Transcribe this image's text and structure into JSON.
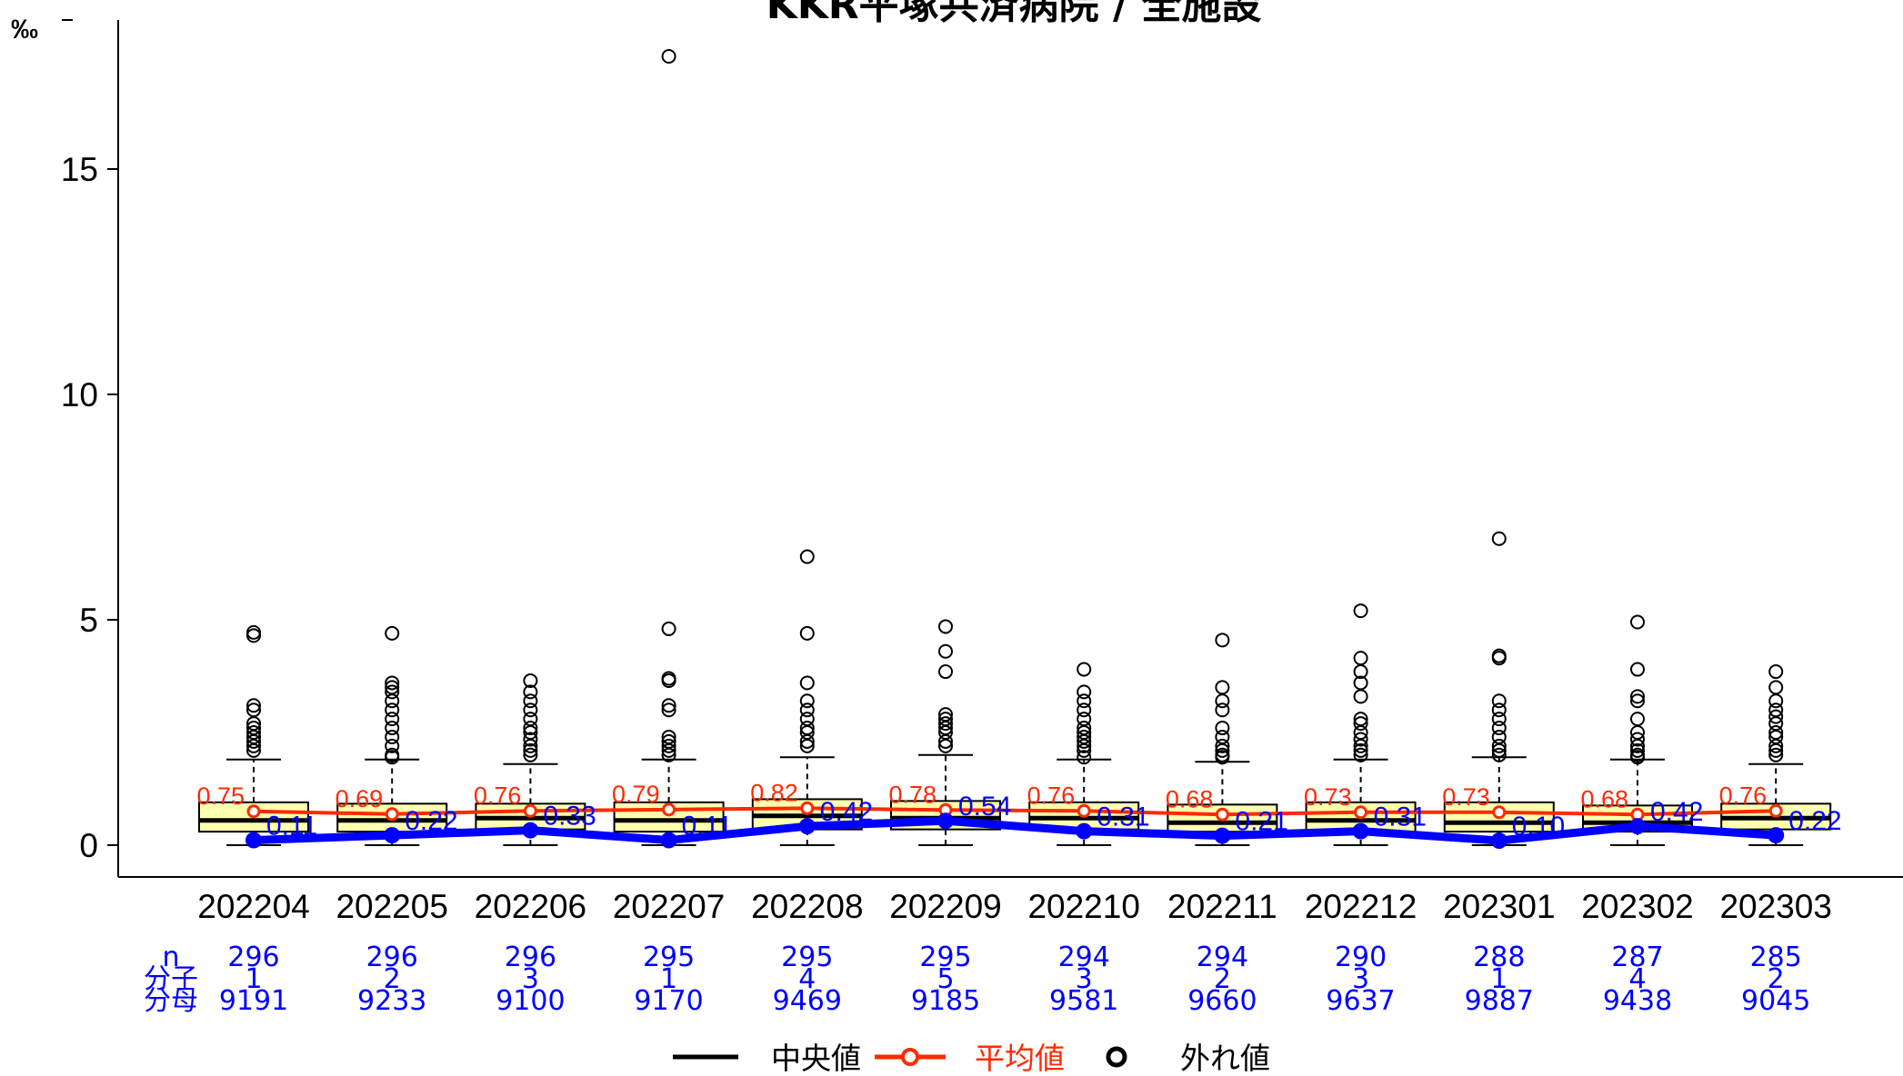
{
  "chart_data": {
    "type": "box",
    "title": "KKR平塚共済病院 / 全施設",
    "unit": "‰",
    "ylim": [
      0,
      18.3
    ],
    "yticks": [
      0,
      5,
      10,
      15
    ],
    "categories": [
      "202204",
      "202205",
      "202206",
      "202207",
      "202208",
      "202209",
      "202210",
      "202211",
      "202212",
      "202301",
      "202302",
      "202303"
    ],
    "boxes": [
      {
        "q1": 0.3,
        "median": 0.55,
        "q3": 0.95,
        "whisker_low": 0,
        "whisker_high": 1.9,
        "outliers": [
          2.1,
          2.2,
          2.3,
          2.4,
          2.5,
          2.6,
          2.7,
          3.0,
          3.1,
          4.65,
          4.72
        ]
      },
      {
        "q1": 0.3,
        "median": 0.55,
        "q3": 0.92,
        "whisker_low": 0,
        "whisker_high": 1.9,
        "outliers": [
          1.95,
          2.0,
          2.2,
          2.4,
          2.6,
          2.8,
          3.0,
          3.2,
          3.4,
          3.5,
          3.6,
          4.7
        ]
      },
      {
        "q1": 0.35,
        "median": 0.6,
        "q3": 0.92,
        "whisker_low": 0,
        "whisker_high": 1.8,
        "outliers": [
          2.0,
          2.1,
          2.2,
          2.35,
          2.5,
          2.6,
          2.8,
          3.0,
          3.2,
          3.4,
          3.65
        ]
      },
      {
        "q1": 0.3,
        "median": 0.55,
        "q3": 0.95,
        "whisker_low": 0,
        "whisker_high": 1.9,
        "outliers": [
          2.0,
          2.1,
          2.2,
          2.3,
          2.4,
          3.0,
          3.1,
          3.65,
          3.7,
          4.8,
          17.5
        ]
      },
      {
        "q1": 0.35,
        "median": 0.65,
        "q3": 1.02,
        "whisker_low": 0,
        "whisker_high": 1.95,
        "outliers": [
          2.2,
          2.3,
          2.5,
          2.6,
          2.8,
          3.0,
          3.2,
          3.6,
          4.7,
          6.4
        ]
      },
      {
        "q1": 0.35,
        "median": 0.6,
        "q3": 0.98,
        "whisker_low": 0,
        "whisker_high": 2.0,
        "outliers": [
          2.2,
          2.3,
          2.5,
          2.6,
          2.7,
          2.8,
          2.9,
          3.85,
          4.3,
          4.85
        ]
      },
      {
        "q1": 0.35,
        "median": 0.6,
        "q3": 0.95,
        "whisker_low": 0,
        "whisker_high": 1.9,
        "outliers": [
          1.95,
          2.1,
          2.2,
          2.3,
          2.4,
          2.5,
          2.6,
          2.8,
          3.0,
          3.2,
          3.4,
          3.9
        ]
      },
      {
        "q1": 0.3,
        "median": 0.5,
        "q3": 0.9,
        "whisker_low": 0,
        "whisker_high": 1.85,
        "outliers": [
          1.95,
          2.0,
          2.1,
          2.2,
          2.4,
          2.6,
          3.0,
          3.2,
          3.5,
          4.55
        ]
      },
      {
        "q1": 0.3,
        "median": 0.55,
        "q3": 0.95,
        "whisker_low": 0,
        "whisker_high": 1.9,
        "outliers": [
          2.0,
          2.1,
          2.2,
          2.35,
          2.5,
          2.7,
          2.8,
          3.3,
          3.6,
          3.85,
          4.15,
          5.2
        ]
      },
      {
        "q1": 0.3,
        "median": 0.5,
        "q3": 0.95,
        "whisker_low": 0,
        "whisker_high": 1.95,
        "outliers": [
          2.0,
          2.1,
          2.2,
          2.4,
          2.6,
          2.8,
          3.0,
          3.2,
          4.15,
          4.2,
          6.8
        ]
      },
      {
        "q1": 0.3,
        "median": 0.5,
        "q3": 0.88,
        "whisker_low": 0,
        "whisker_high": 1.9,
        "outliers": [
          1.95,
          2.0,
          2.1,
          2.2,
          2.35,
          2.5,
          2.8,
          3.2,
          3.3,
          3.9,
          4.95
        ]
      },
      {
        "q1": 0.35,
        "median": 0.6,
        "q3": 0.92,
        "whisker_low": 0,
        "whisker_high": 1.8,
        "outliers": [
          2.0,
          2.1,
          2.2,
          2.4,
          2.5,
          2.7,
          2.85,
          3.0,
          3.2,
          3.5,
          3.85
        ]
      }
    ],
    "series": [
      {
        "name": "平均値",
        "color": "#ff2a00",
        "values": [
          0.75,
          0.69,
          0.76,
          0.79,
          0.82,
          0.78,
          0.76,
          0.68,
          0.73,
          0.73,
          0.68,
          0.76
        ],
        "labels": [
          "0.75",
          "0.69",
          "0.76",
          "0.79",
          "0.82",
          "0.78",
          "0.76",
          "0.68",
          "0.73",
          "0.73",
          "0.68",
          "0.76"
        ]
      },
      {
        "name": "",
        "color": "#0000ff",
        "values": [
          0.11,
          0.22,
          0.33,
          0.11,
          0.42,
          0.54,
          0.31,
          0.21,
          0.31,
          0.1,
          0.42,
          0.22
        ],
        "labels": [
          "0.11",
          "0.22",
          "0.33",
          "0.11",
          "0.42",
          "0.54",
          "0.31",
          "0.21",
          "0.31",
          "0.10",
          "0.42",
          "0.22"
        ]
      }
    ],
    "table": {
      "row_labels": [
        "n",
        "分子",
        "分母"
      ],
      "n": [
        "296",
        "296",
        "296",
        "295",
        "295",
        "295",
        "294",
        "294",
        "290",
        "288",
        "287",
        "285"
      ],
      "numerator": [
        "1",
        "2",
        "3",
        "1",
        "4",
        "5",
        "3",
        "2",
        "3",
        "1",
        "4",
        "2"
      ],
      "denominator": [
        "9191",
        "9233",
        "9100",
        "9170",
        "9469",
        "9185",
        "9581",
        "9660",
        "9637",
        "9887",
        "9438",
        "9045"
      ]
    },
    "legend": {
      "position": "bottom",
      "items": [
        {
          "label": "中央値",
          "color": "#000000"
        },
        {
          "label": "平均値",
          "color": "#ff2a00"
        },
        {
          "label": "外れ値",
          "color": "#000000"
        }
      ]
    },
    "colors": {
      "box_fill": "#ffffb0",
      "box_stroke": "#000000"
    }
  }
}
